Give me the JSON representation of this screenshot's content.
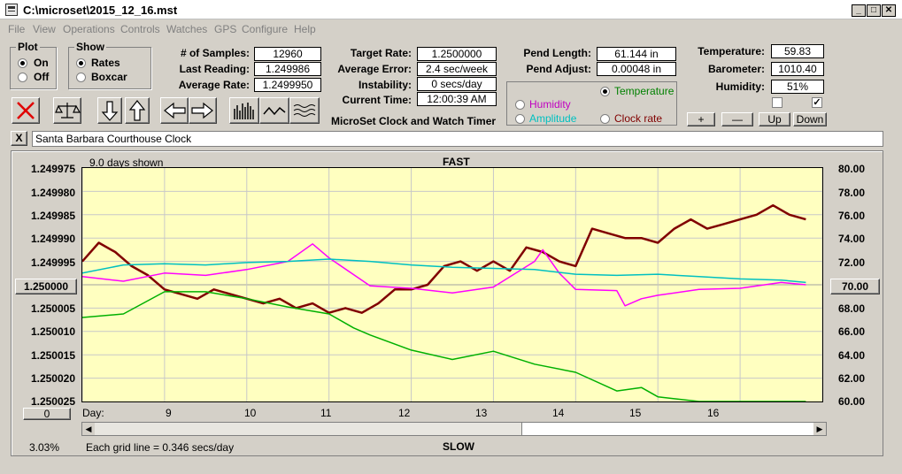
{
  "window": {
    "title": "C:\\microset\\2015_12_16.mst",
    "min": "_",
    "max": "□",
    "close": "✕"
  },
  "menu": [
    "File",
    "View",
    "Operations",
    "Controls",
    "Watches",
    "GPS",
    "Configure",
    "Help"
  ],
  "plot_group": {
    "title": "Plot",
    "on": "On",
    "off": "Off",
    "selected": "On"
  },
  "show_group": {
    "title": "Show",
    "rates": "Rates",
    "boxcar": "Boxcar",
    "selected": "Rates"
  },
  "stats": {
    "samples_label": "# of Samples:",
    "samples": "12960",
    "last_label": "Last Reading:",
    "last": "1.249986",
    "avg_label": "Average Rate:",
    "avg": "1.2499950",
    "target_label": "Target Rate:",
    "target": "1.2500000",
    "avgerr_label": "Average Error:",
    "avgerr": "2.4 sec/week",
    "instab_label": "Instability:",
    "instab": "0 secs/day",
    "curtime_label": "Current Time:",
    "curtime": "12:00:39 AM",
    "app_name": "MicroSet Clock and Watch Timer",
    "pendlen_label": "Pend Length:",
    "pendlen": "61.144 in",
    "pendadj_label": "Pend Adjust:",
    "pendadj": "0.00048 in",
    "temp_label": "Temperature:",
    "temp": "59.83",
    "baro_label": "Barometer:",
    "baro": "1010.40",
    "humid_label": "Humidity:",
    "humid": "51%"
  },
  "trace_select": {
    "temperature": "Temperature",
    "humidity": "Humidity",
    "amplitude": "Amplitude",
    "clockrate": "Clock rate",
    "selected": "Temperature"
  },
  "scale_buttons": {
    "plus": "+",
    "minus": "—",
    "up": "Up",
    "down": "Down"
  },
  "checks": {
    "left": false,
    "right": true
  },
  "description": {
    "close": "X",
    "value": "Santa Barbara Courthouse Clock"
  },
  "chart_data": {
    "type": "line",
    "top_label": "FAST",
    "bottom_label": "SLOW",
    "days_shown": "9.0 days shown",
    "grid_note": "Each grid line = 0.346 secs/day",
    "percent": "3.03%",
    "xlabel": "Day:",
    "x_ticks": [
      "9",
      "10",
      "11",
      "12",
      "13",
      "14",
      "15",
      "16"
    ],
    "left_axis": {
      "ticks": [
        "1.249975",
        "1.249980",
        "1.249985",
        "1.249990",
        "1.249995",
        "1.250000",
        "1.250005",
        "1.250010",
        "1.250015",
        "1.250020",
        "1.250025"
      ],
      "center_value": "1.250000",
      "bottom_button": "0",
      "range": [
        1.249975,
        1.250025
      ]
    },
    "right_axis": {
      "ticks": [
        "80.00",
        "78.00",
        "76.00",
        "74.00",
        "72.00",
        "70.00",
        "68.00",
        "66.00",
        "64.00",
        "62.00",
        "60.00"
      ],
      "center_value": "70.00",
      "range": [
        60,
        80
      ]
    },
    "xlim": [
      8.0,
      17.0
    ],
    "series": [
      {
        "color": "#800000",
        "axis": "left",
        "x": [
          8.0,
          8.2,
          8.4,
          8.6,
          8.8,
          9.0,
          9.2,
          9.4,
          9.6,
          9.8,
          10.0,
          10.2,
          10.4,
          10.6,
          10.8,
          11.0,
          11.2,
          11.4,
          11.6,
          11.8,
          12.0,
          12.2,
          12.4,
          12.6,
          12.8,
          13.0,
          13.2,
          13.4,
          13.6,
          13.8,
          14.0,
          14.2,
          14.4,
          14.6,
          14.8,
          15.0,
          15.2,
          15.4,
          15.6,
          15.8,
          16.0,
          16.2,
          16.4,
          16.6,
          16.8
        ],
        "y": [
          1.249995,
          1.249991,
          1.249993,
          1.249996,
          1.249998,
          1.250001,
          1.250002,
          1.250003,
          1.250001,
          1.250002,
          1.250003,
          1.250004,
          1.250003,
          1.250005,
          1.250004,
          1.250006,
          1.250005,
          1.250006,
          1.250004,
          1.250001,
          1.250001,
          1.25,
          1.249996,
          1.249995,
          1.249997,
          1.249995,
          1.249997,
          1.249992,
          1.249993,
          1.249995,
          1.249996,
          1.249988,
          1.249989,
          1.24999,
          1.24999,
          1.249991,
          1.249988,
          1.249986,
          1.249988,
          1.249987,
          1.249986,
          1.249985,
          1.249983,
          1.249985,
          1.249986
        ]
      },
      {
        "color": "#ff00ff",
        "axis": "right",
        "x": [
          8.0,
          8.5,
          9.0,
          9.5,
          10.0,
          10.5,
          10.8,
          11.0,
          11.5,
          12.0,
          12.5,
          13.0,
          13.5,
          13.6,
          13.8,
          14.0,
          14.5,
          14.6,
          14.8,
          15.0,
          15.5,
          16.0,
          16.5,
          16.8
        ],
        "y": [
          70.7,
          70.3,
          71.0,
          70.8,
          71.3,
          72.0,
          73.5,
          72.3,
          69.9,
          69.7,
          69.3,
          69.8,
          72.0,
          73.0,
          71.0,
          69.6,
          69.5,
          68.2,
          68.8,
          69.1,
          69.6,
          69.7,
          70.2,
          70.0
        ]
      },
      {
        "color": "#00c0c0",
        "axis": "right",
        "x": [
          8.0,
          8.5,
          9.0,
          9.5,
          10.0,
          10.5,
          11.0,
          11.5,
          12.0,
          12.5,
          13.0,
          13.5,
          14.0,
          14.5,
          15.0,
          15.5,
          16.0,
          16.5,
          16.8
        ],
        "y": [
          71.0,
          71.7,
          71.8,
          71.7,
          71.9,
          72.0,
          72.2,
          72.0,
          71.7,
          71.5,
          71.4,
          71.3,
          70.9,
          70.8,
          70.9,
          70.7,
          70.5,
          70.4,
          70.2
        ]
      },
      {
        "color": "#00b000",
        "axis": "right",
        "x": [
          8.0,
          8.5,
          9.0,
          9.5,
          10.0,
          10.5,
          11.0,
          11.3,
          11.5,
          12.0,
          12.5,
          13.0,
          13.5,
          14.0,
          14.5,
          14.8,
          15.0,
          15.5,
          16.0,
          16.5,
          16.8
        ],
        "y": [
          67.2,
          67.5,
          69.4,
          69.4,
          68.8,
          68.1,
          67.5,
          66.3,
          65.7,
          64.4,
          63.6,
          64.3,
          63.2,
          62.5,
          60.9,
          61.2,
          60.4,
          60.0,
          60.0,
          60.0,
          60.0
        ]
      }
    ]
  }
}
